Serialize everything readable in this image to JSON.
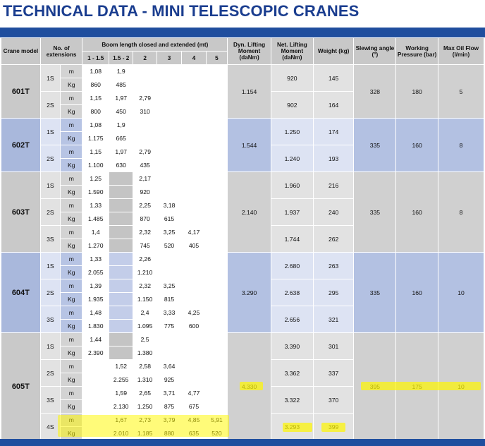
{
  "title": "TECHNICAL DATA - MINI TELESCOPIC CRANES",
  "headers": {
    "crane_model": "Crane model",
    "no_of_extensions": "No. of extensions",
    "boom_length": "Boom length closed and extended (mt)",
    "boom_cols": [
      "1 - 1.5",
      "1.5 - 2",
      "2",
      "3",
      "4",
      "5"
    ],
    "dyn_moment": "Dyn. Lifting Moment (daNm)",
    "net_moment": "Net. Lifting Moment (daNm)",
    "weight": "Weight (kg)",
    "slewing": "Slewing angle (°)",
    "pressure": "Working Pressure (bar)",
    "oil_flow": "Max Oil Flow (l/min)"
  },
  "cranes": [
    {
      "model": "601T",
      "dyn": "1.154",
      "slewing": "328",
      "pressure": "180",
      "flow": "5",
      "groups": [
        {
          "ext": "1S",
          "net": "920",
          "weight": "145",
          "m": [
            "1,08",
            "1,9",
            "",
            "",
            "",
            ""
          ],
          "kg": [
            "860",
            "485",
            "",
            "",
            "",
            ""
          ]
        },
        {
          "ext": "2S",
          "net": "902",
          "weight": "164",
          "m": [
            "1,15",
            "1,97",
            "2,79",
            "",
            "",
            ""
          ],
          "kg": [
            "800",
            "450",
            "310",
            "",
            "",
            ""
          ]
        }
      ]
    },
    {
      "model": "602T",
      "dyn": "1.544",
      "slewing": "335",
      "pressure": "160",
      "flow": "8",
      "groups": [
        {
          "ext": "1S",
          "net": "1.250",
          "weight": "174",
          "m": [
            "1,08",
            "1,9",
            "",
            "",
            "",
            ""
          ],
          "kg": [
            "1.175",
            "665",
            "",
            "",
            "",
            ""
          ]
        },
        {
          "ext": "2S",
          "net": "1.240",
          "weight": "193",
          "m": [
            "1,15",
            "1,97",
            "2,79",
            "",
            "",
            ""
          ],
          "kg": [
            "1.100",
            "630",
            "435",
            "",
            "",
            ""
          ]
        }
      ]
    },
    {
      "model": "603T",
      "dyn": "2.140",
      "slewing": "335",
      "pressure": "160",
      "flow": "8",
      "groups": [
        {
          "ext": "1S",
          "net": "1.960",
          "weight": "216",
          "m": [
            "1,25",
            "",
            "2,17",
            "",
            "",
            ""
          ],
          "kg": [
            "1.590",
            "",
            "920",
            "",
            "",
            ""
          ]
        },
        {
          "ext": "2S",
          "net": "1.937",
          "weight": "240",
          "m": [
            "1,33",
            "",
            "2,25",
            "3,18",
            "",
            ""
          ],
          "kg": [
            "1.485",
            "",
            "870",
            "615",
            "",
            ""
          ]
        },
        {
          "ext": "3S",
          "net": "1.744",
          "weight": "262",
          "m": [
            "1,4",
            "",
            "2,32",
            "3,25",
            "4,17",
            ""
          ],
          "kg": [
            "1.270",
            "",
            "745",
            "520",
            "405",
            ""
          ]
        }
      ]
    },
    {
      "model": "604T",
      "dyn": "3.290",
      "slewing": "335",
      "pressure": "160",
      "flow": "10",
      "groups": [
        {
          "ext": "1S",
          "net": "2.680",
          "weight": "263",
          "m": [
            "1,33",
            "",
            "2,26",
            "",
            "",
            ""
          ],
          "kg": [
            "2.055",
            "",
            "1.210",
            "",
            "",
            ""
          ]
        },
        {
          "ext": "2S",
          "net": "2.638",
          "weight": "295",
          "m": [
            "1,39",
            "",
            "2,32",
            "3,25",
            "",
            ""
          ],
          "kg": [
            "1.935",
            "",
            "1.150",
            "815",
            "",
            ""
          ]
        },
        {
          "ext": "3S",
          "net": "2.656",
          "weight": "321",
          "m": [
            "1,48",
            "",
            "2,4",
            "3,33",
            "4,25",
            ""
          ],
          "kg": [
            "1.830",
            "",
            "1.095",
            "775",
            "600",
            ""
          ]
        }
      ]
    },
    {
      "model": "605T",
      "dyn": "4.330",
      "slewing": "395",
      "pressure": "175",
      "flow": "10",
      "groups": [
        {
          "ext": "1S",
          "net": "3.390",
          "weight": "301",
          "m": [
            "1,44",
            "",
            "2,5",
            "",
            "",
            ""
          ],
          "kg": [
            "2.390",
            "",
            "1.380",
            "",
            "",
            ""
          ]
        },
        {
          "ext": "2S",
          "net": "3.362",
          "weight": "337",
          "m": [
            "",
            "1,52",
            "2,58",
            "3,64",
            "",
            ""
          ],
          "kg": [
            "",
            "2.255",
            "1.310",
            "925",
            "",
            ""
          ]
        },
        {
          "ext": "3S",
          "net": "3.322",
          "weight": "370",
          "m": [
            "",
            "1,59",
            "2,65",
            "3,71",
            "4,77",
            ""
          ],
          "kg": [
            "",
            "2.130",
            "1.250",
            "875",
            "675",
            ""
          ]
        },
        {
          "ext": "4S",
          "net": "3.293",
          "weight": "399",
          "m": [
            "",
            "1,67",
            "2,73",
            "3,79",
            "4,85",
            "5,91"
          ],
          "kg": [
            "",
            "2.010",
            "1.185",
            "880",
            "635",
            "520"
          ]
        }
      ]
    }
  ],
  "units": {
    "m": "m",
    "kg": "Kg"
  },
  "colors": {
    "title": "#1a3d8f",
    "bar": "#1f4e9e",
    "blue_band": "#a9b8dc",
    "gray_band": "#c9c9c9",
    "highlight": "#fff700"
  }
}
